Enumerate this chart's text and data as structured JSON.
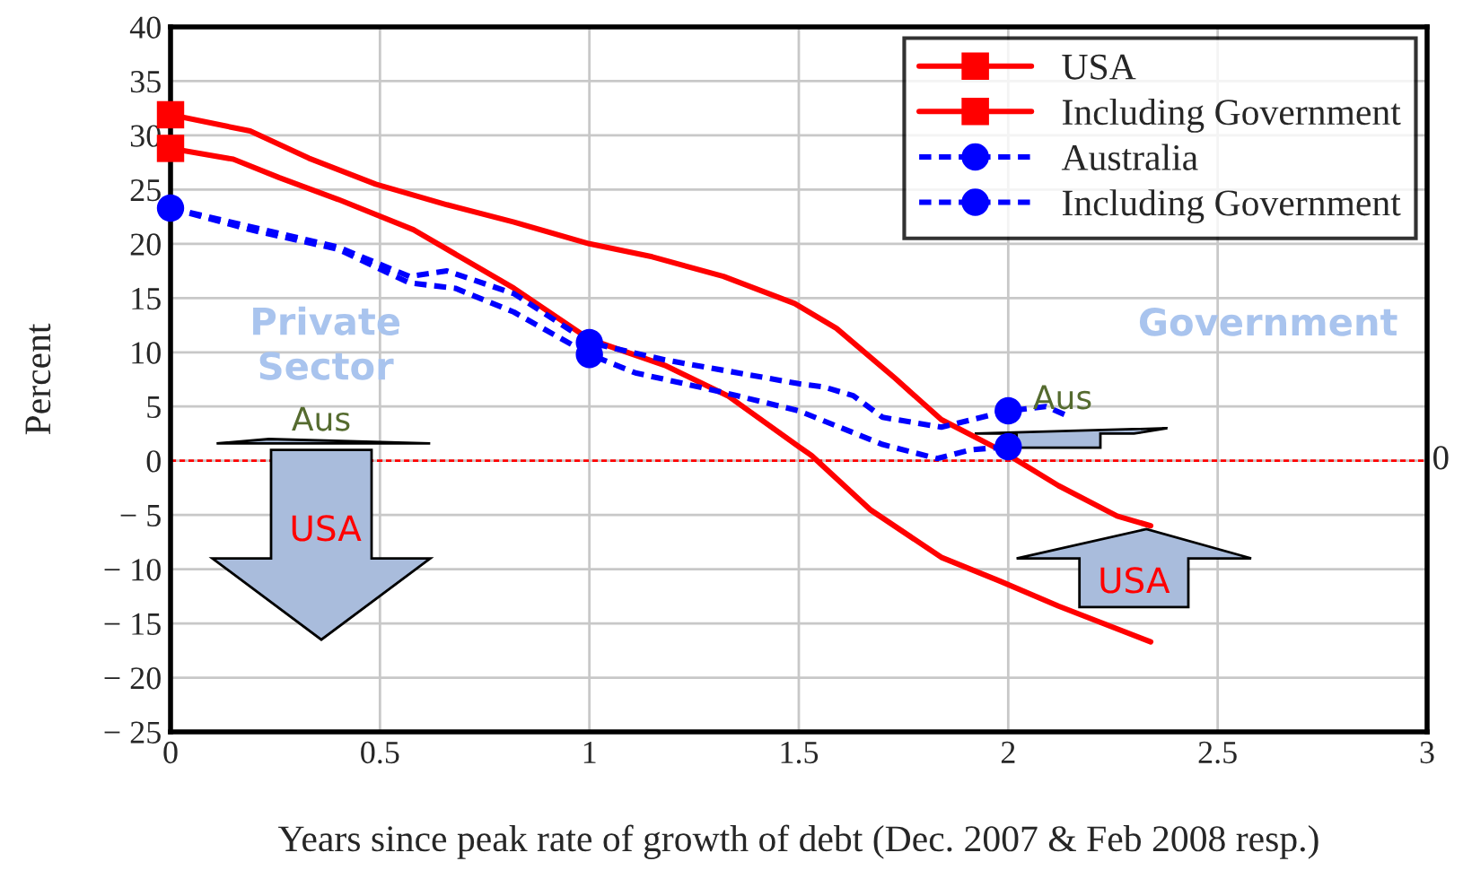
{
  "chart_data": {
    "type": "line",
    "xlabel": "Years since peak rate of growth of debt (Dec. 2007 & Feb 2008 resp.)",
    "ylabel": "Percent",
    "xlim": [
      0,
      3
    ],
    "xticks": [
      0,
      0.5,
      1,
      1.5,
      2,
      2.5,
      3
    ],
    "ylim": [
      -25,
      40
    ],
    "yticks": [
      {
        "value": -25,
        "label": "− 25"
      },
      {
        "value": -20,
        "label": "− 20"
      },
      {
        "value": -15,
        "label": "− 15"
      },
      {
        "value": -10,
        "label": "− 10"
      },
      {
        "value": -5,
        "label": "− 5"
      },
      0,
      5,
      10,
      15,
      20,
      25,
      30,
      35,
      40
    ],
    "grid": true,
    "legend": "top right",
    "series": [
      {
        "name": "USA",
        "color": "#ff0000",
        "line_style": "solid",
        "x": [
          0,
          0.15,
          0.26,
          0.4,
          0.58,
          0.82,
          1.0,
          1.18,
          1.33,
          1.5,
          1.53,
          1.67,
          1.84,
          1.98,
          2.12,
          2.34
        ],
        "values": [
          28.8,
          27.8,
          26.1,
          24.1,
          21.3,
          15.9,
          11.2,
          8.8,
          6.0,
          1.3,
          0.5,
          -4.5,
          -8.9,
          -11.1,
          -13.4,
          -16.7
        ]
      },
      {
        "type": "scatter",
        "color": "#ff0000",
        "marker": "square",
        "x": [
          0
        ],
        "values": [
          28.8
        ]
      },
      {
        "name": "Including Government",
        "color": "#ff0000",
        "line_style": "solid",
        "x": [
          0,
          0.19,
          0.33,
          0.49,
          0.66,
          0.82,
          1.0,
          1.15,
          1.32,
          1.49,
          1.59,
          1.73,
          1.84,
          1.98,
          2.12,
          2.26,
          2.34
        ],
        "values": [
          31.9,
          30.4,
          27.9,
          25.5,
          23.6,
          22.0,
          20.0,
          18.8,
          17.0,
          14.5,
          12.2,
          7.6,
          3.8,
          1.0,
          -2.3,
          -5.1,
          -6.0
        ]
      },
      {
        "type": "scatter",
        "color": "#ff0000",
        "marker": "square",
        "x": [
          0
        ],
        "values": [
          31.9
        ]
      },
      {
        "name": "Australia",
        "color": "#0000ff",
        "line_style": "dashed",
        "x": [
          0,
          0.19,
          0.4,
          0.57,
          0.68,
          0.82,
          1.0,
          1.11,
          1.32,
          1.5,
          1.7,
          1.83,
          1.91,
          2.0
        ],
        "values": [
          23.3,
          21.3,
          19.5,
          16.4,
          15.9,
          13.7,
          9.8,
          8.1,
          6.3,
          4.6,
          1.5,
          0.2,
          1.0,
          1.3
        ]
      },
      {
        "type": "scatter",
        "color": "#0000ff",
        "marker": "circle",
        "x": [
          1,
          2
        ],
        "values": [
          9.8,
          1.3
        ]
      },
      {
        "name": "Including Government",
        "color": "#0000ff",
        "line_style": "dashed",
        "x": [
          0,
          0.4,
          0.57,
          0.66,
          0.82,
          1.0,
          1.18,
          1.5,
          1.56,
          1.63,
          1.7,
          1.84,
          2.0,
          2.09,
          2.15
        ],
        "values": [
          23.3,
          19.7,
          17.0,
          17.5,
          15.4,
          10.9,
          9.3,
          7.1,
          6.8,
          6.0,
          4.0,
          3.1,
          4.6,
          5.0,
          4.0
        ]
      },
      {
        "type": "scatter",
        "color": "#0000ff",
        "marker": "circle",
        "x": [
          0,
          1,
          2
        ],
        "values": [
          23.3,
          10.9,
          4.6
        ]
      }
    ],
    "ref_lines": [
      {
        "axis": "y",
        "value": 0,
        "label": "0",
        "color": "#ff0000",
        "line_style": "dashed"
      }
    ],
    "annotations": [
      "Private\nSector",
      "Government",
      "Aus",
      "USA",
      "Aus",
      "USA"
    ]
  }
}
